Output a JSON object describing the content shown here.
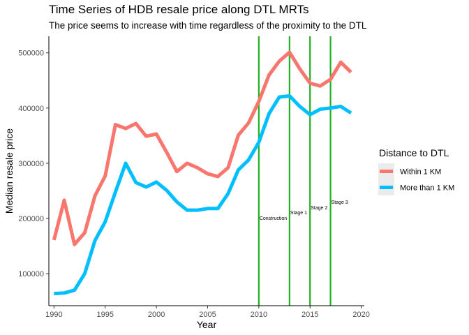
{
  "chart_data": {
    "type": "line",
    "title": "Time Series of HDB resale price along DTL MRTs",
    "subtitle": "The price seems to increase with time regardless of the proximity to the DTL",
    "xlabel": "Year",
    "ylabel": "Median resale price",
    "xlim": [
      1989.5,
      2020.3
    ],
    "ylim": [
      42000,
      530000
    ],
    "x_ticks": [
      1990,
      1995,
      2000,
      2005,
      2010,
      2015,
      2020
    ],
    "x_tick_labels": [
      "1990",
      "1995",
      "2000",
      "2005",
      "2010",
      "2015",
      "2020"
    ],
    "y_ticks": [
      100000,
      200000,
      300000,
      400000,
      500000
    ],
    "y_tick_labels": [
      "100000",
      "200000",
      "300000",
      "400000",
      "500000"
    ],
    "grid": false,
    "legend": {
      "title": "Distance to DTL",
      "position": "right"
    },
    "x": [
      1990,
      1991,
      1992,
      1993,
      1994,
      1995,
      1996,
      1997,
      1998,
      1999,
      2000,
      2001,
      2002,
      2003,
      2004,
      2005,
      2006,
      2007,
      2008,
      2009,
      2010,
      2011,
      2012,
      2013,
      2014,
      2015,
      2016,
      2017,
      2018,
      2019
    ],
    "series": [
      {
        "name": "Within 1 KM",
        "color": "#F8766D",
        "values": [
          161000,
          233000,
          153000,
          174000,
          241000,
          277000,
          370000,
          363000,
          372000,
          349000,
          353000,
          320000,
          285000,
          300000,
          292000,
          281000,
          276000,
          292000,
          351000,
          373000,
          412000,
          460000,
          485000,
          501000,
          471000,
          445000,
          440000,
          452000,
          483000,
          465000
        ]
      },
      {
        "name": "More than 1 KM",
        "color": "#00BFFF",
        "values": [
          64000,
          65000,
          70000,
          100000,
          160000,
          194000,
          248000,
          300000,
          265000,
          257000,
          266000,
          251000,
          230000,
          215000,
          215000,
          218000,
          218000,
          245000,
          288000,
          306000,
          338000,
          390000,
          420000,
          422000,
          403000,
          388000,
          398000,
          400000,
          403000,
          391000
        ]
      }
    ],
    "vlines": {
      "color": "#22B022",
      "items": [
        {
          "x": 2010,
          "label": "Construction",
          "label_y": 200000
        },
        {
          "x": 2013,
          "label": "Stage 1",
          "label_y": 210000
        },
        {
          "x": 2015,
          "label": "Stage 2",
          "label_y": 219000
        },
        {
          "x": 2017,
          "label": "Stage 3",
          "label_y": 229000
        }
      ]
    }
  }
}
